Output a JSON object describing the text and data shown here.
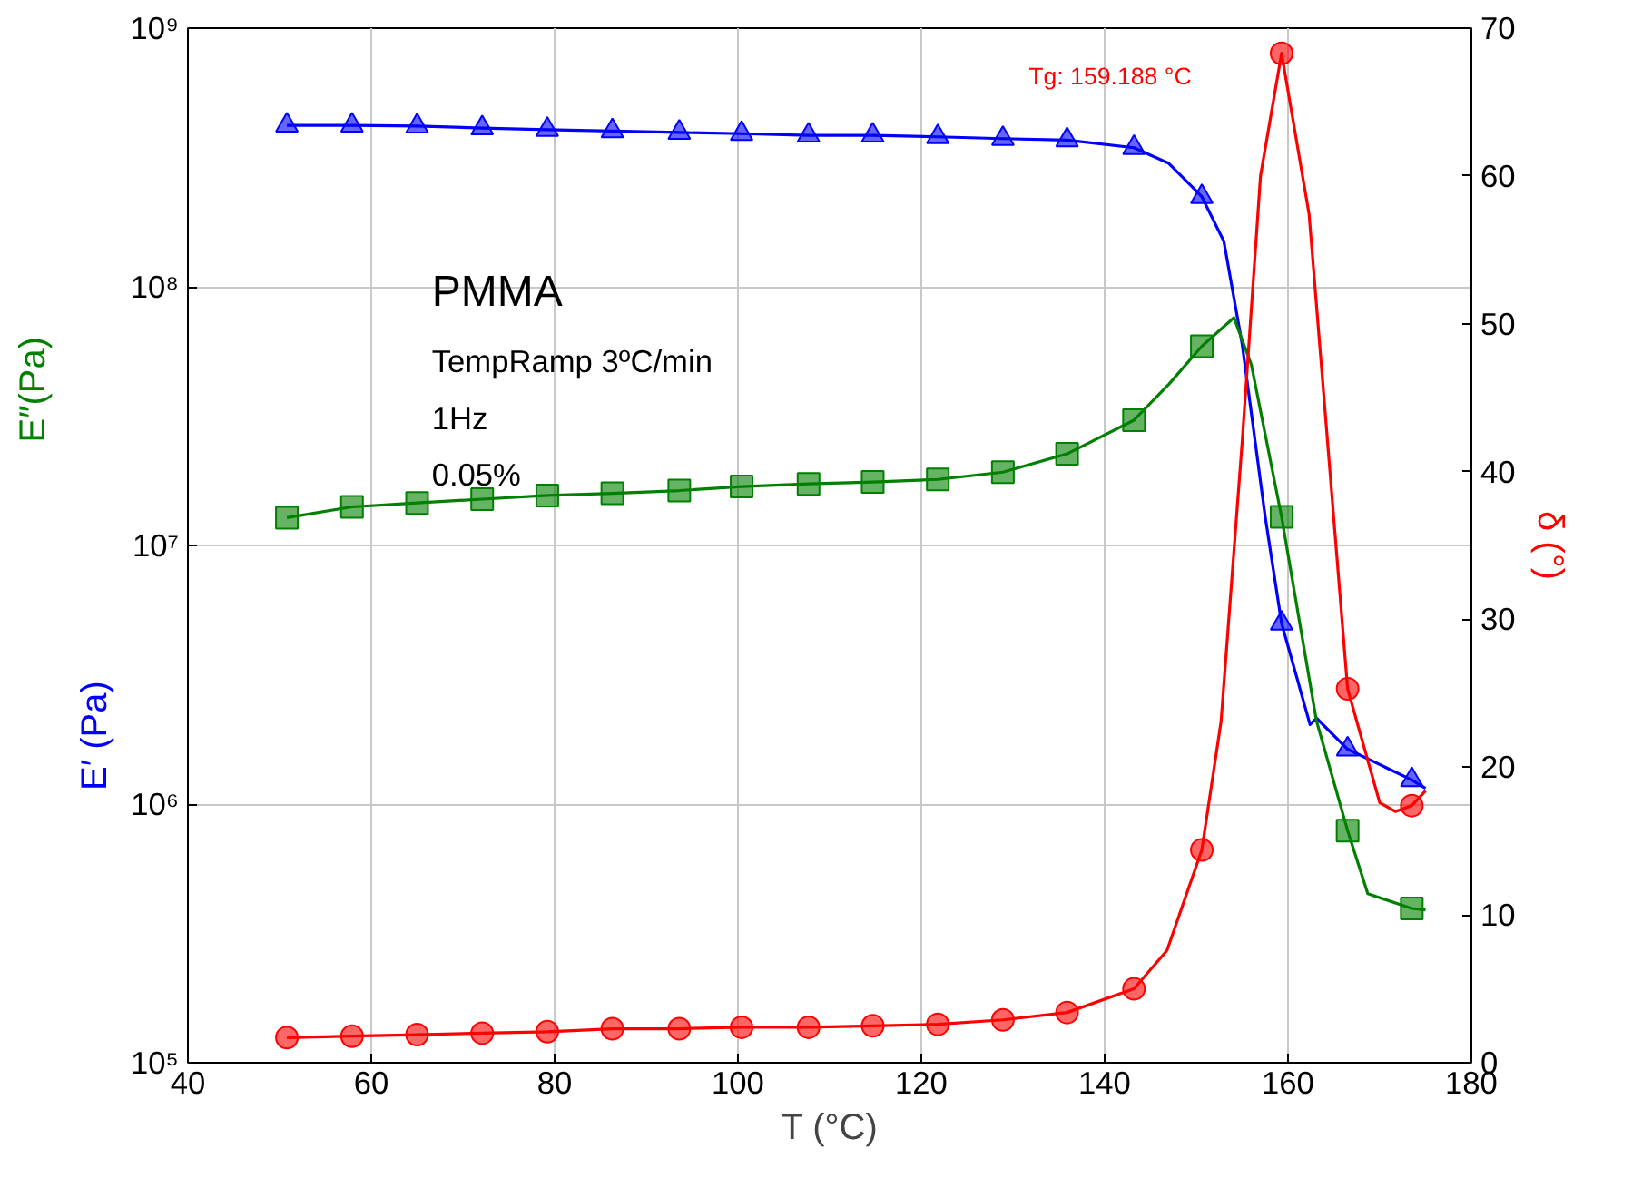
{
  "chart_data": {
    "type": "line",
    "xlabel": "T (°C)",
    "log": "y",
    "grid": true,
    "xlim": [
      40,
      180
    ],
    "xticks": [
      40,
      60,
      80,
      100,
      120,
      140,
      160,
      180
    ],
    "ylim": [
      100000,
      1000000000
    ],
    "yticks": [
      {
        "value": 100000,
        "label": "10⁵"
      },
      {
        "value": 1000000,
        "label": "10⁶"
      },
      {
        "value": 10000000,
        "label": "10⁷"
      },
      {
        "value": 100000000,
        "label": "10⁸"
      },
      {
        "value": 1000000000,
        "label": "10⁹"
      }
    ],
    "y2lim": [
      0,
      70
    ],
    "y2ticks": [
      0,
      10,
      20,
      30,
      40,
      50,
      60,
      70
    ],
    "annotations": [
      "Tg: 159.188 °C",
      "PMMA",
      "TempRamp 3ºC/min",
      "1Hz",
      "0.05%"
    ],
    "series": [
      {
        "color": "#0000ff",
        "x": [
          50.8,
          57.9,
          65.0,
          72.1,
          79.2,
          86.3,
          93.6,
          100.4,
          107.7,
          114.7,
          121.8,
          128.9,
          135.9,
          143.2,
          147,
          150.6,
          153,
          155,
          157.5,
          159.3,
          162.4,
          163.1,
          166.5,
          173.5,
          175
        ],
        "values": [
          421000000,
          421000000,
          418000000,
          411000000,
          405000000,
          400000000,
          395000000,
          391000000,
          385000000,
          385000000,
          380000000,
          374000000,
          369000000,
          345000000,
          300000000,
          223000000,
          150000000,
          60000000,
          13000000,
          5000000,
          2030000,
          2150000,
          1630000,
          1240000,
          1150000
        ]
      },
      {
        "type": "scatter",
        "name": "E′ (Pa)",
        "marker": "triangle",
        "color": "#0000ff",
        "x": [
          50.8,
          57.9,
          65.0,
          72.1,
          79.2,
          86.3,
          93.6,
          100.4,
          107.7,
          114.7,
          121.8,
          128.9,
          135.9,
          143.2,
          150.6,
          159.3,
          166.5,
          173.5
        ],
        "values": [
          421000000,
          421000000,
          418000000,
          411000000,
          405000000,
          400000000,
          395000000,
          391000000,
          385000000,
          385000000,
          380000000,
          374000000,
          369000000,
          345000000,
          223000000,
          5000000,
          1630000,
          1240000
        ]
      },
      {
        "color": "#008000",
        "x": [
          50.8,
          57.9,
          65.0,
          72.1,
          79.2,
          86.3,
          93.6,
          100.4,
          107.7,
          114.7,
          121.8,
          128.9,
          135.9,
          143.2,
          147,
          150.6,
          154.1,
          156,
          159.3,
          163.1,
          166.5,
          168.7,
          173.5,
          175
        ],
        "values": [
          12800000,
          14100000,
          14600000,
          15100000,
          15600000,
          15900000,
          16300000,
          16900000,
          17300000,
          17600000,
          18000000,
          19200000,
          22600000,
          30500000,
          42000000,
          58900000,
          76000000,
          50000000,
          12900000,
          2100000,
          790000,
          450000,
          395000,
          390000
        ]
      },
      {
        "type": "scatter",
        "name": "E″(Pa)",
        "marker": "square",
        "color": "#008000",
        "x": [
          50.8,
          57.9,
          65.0,
          72.1,
          79.2,
          86.3,
          93.6,
          100.4,
          107.7,
          114.7,
          121.8,
          128.9,
          135.9,
          143.2,
          150.6,
          159.3,
          166.5,
          173.5
        ],
        "values": [
          12800000,
          14100000,
          14600000,
          15100000,
          15600000,
          15900000,
          16300000,
          16900000,
          17300000,
          17600000,
          18000000,
          19200000,
          22600000,
          30500000,
          58900000,
          12900000,
          790000,
          395000
        ]
      },
      {
        "axis": "y2",
        "color": "#ff0000",
        "x": [
          50.8,
          57.9,
          65.0,
          72.1,
          79.2,
          86.3,
          93.6,
          100.4,
          107.7,
          114.7,
          121.8,
          128.9,
          135.9,
          143.2,
          146.8,
          150.6,
          152.7,
          155,
          157,
          159.3,
          162.3,
          166.5,
          170,
          171.7,
          173.5,
          175
        ],
        "values": [
          1.7,
          1.8,
          1.9,
          2.0,
          2.1,
          2.3,
          2.3,
          2.4,
          2.4,
          2.5,
          2.6,
          2.9,
          3.4,
          5.0,
          7.6,
          14.4,
          23.1,
          42,
          60,
          68.3,
          57.4,
          25.3,
          17.6,
          17.0,
          17.4,
          18.4
        ]
      },
      {
        "type": "scatter",
        "axis": "y2",
        "name": "δ (°)",
        "marker": "circle",
        "color": "#ff0000",
        "x": [
          50.8,
          57.9,
          65.0,
          72.1,
          79.2,
          86.3,
          93.6,
          100.4,
          107.7,
          114.7,
          121.8,
          128.9,
          135.9,
          143.2,
          150.6,
          159.3,
          166.5,
          173.5
        ],
        "values": [
          1.7,
          1.8,
          1.9,
          2.0,
          2.1,
          2.3,
          2.3,
          2.4,
          2.4,
          2.5,
          2.6,
          2.9,
          3.4,
          5.0,
          14.4,
          68.3,
          25.3,
          17.4
        ]
      }
    ]
  }
}
